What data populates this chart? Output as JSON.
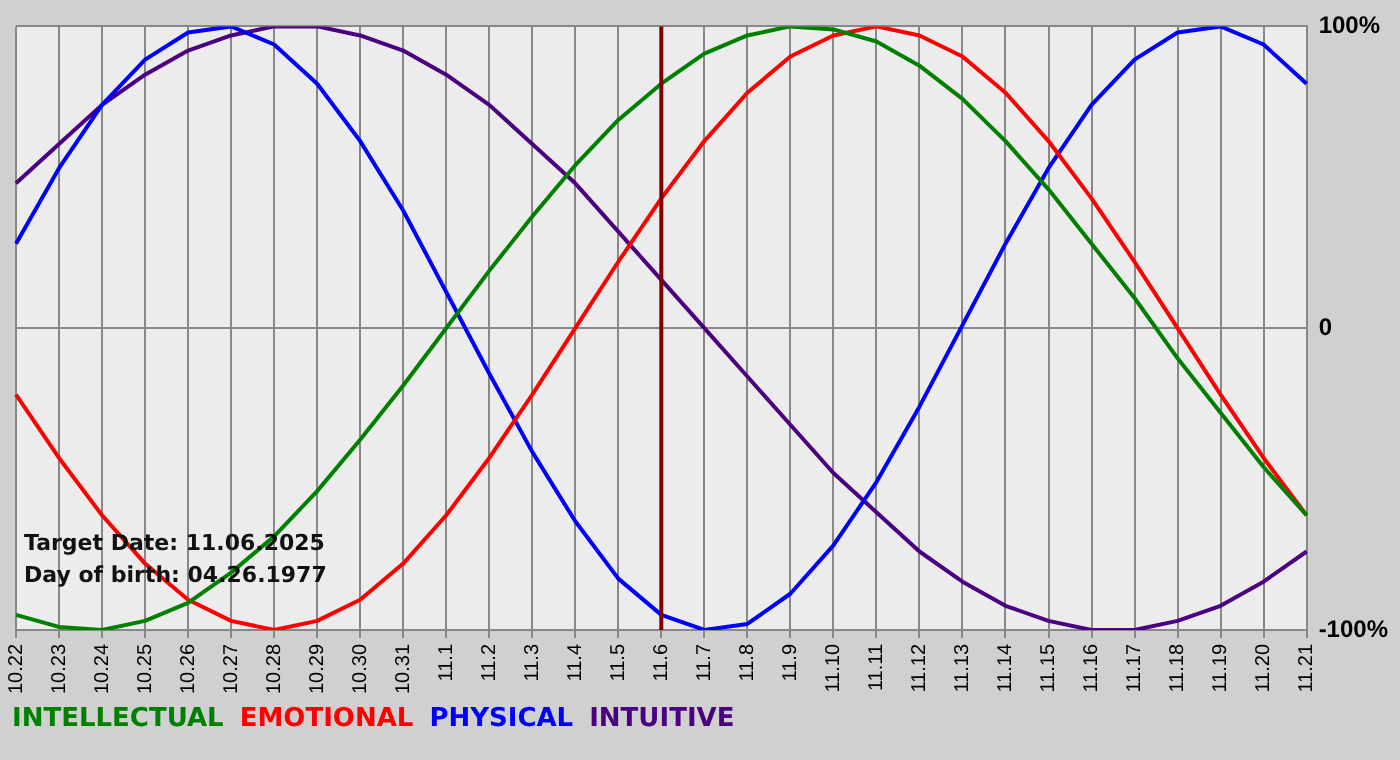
{
  "chart_data": {
    "type": "line",
    "categories": [
      "10.22",
      "10.23",
      "10.24",
      "10.25",
      "10.26",
      "10.27",
      "10.28",
      "10.29",
      "10.30",
      "10.31",
      "11.1",
      "11.2",
      "11.3",
      "11.4",
      "11.5",
      "11.6",
      "11.7",
      "11.8",
      "11.9",
      "11.10",
      "11.11",
      "11.12",
      "11.13",
      "11.14",
      "11.15",
      "11.16",
      "11.17",
      "11.18",
      "11.19",
      "11.20",
      "11.21"
    ],
    "series": [
      {
        "name": "INTELLECTUAL",
        "color": "#008000",
        "values": [
          -95,
          -99,
          -100,
          -97,
          -91,
          -81,
          -69,
          -54,
          -37,
          -19,
          0,
          19,
          37,
          54,
          69,
          81,
          91,
          97,
          100,
          99,
          95,
          87,
          76,
          62,
          46,
          28,
          10,
          -10,
          -28,
          -46,
          -62
        ]
      },
      {
        "name": "EMOTIONAL",
        "color": "#ff0000",
        "values": [
          -22,
          -43,
          -62,
          -78,
          -90,
          -97,
          -100,
          -97,
          -90,
          -78,
          -62,
          -43,
          -22,
          0,
          22,
          43,
          62,
          78,
          90,
          97,
          100,
          97,
          90,
          78,
          62,
          43,
          22,
          0,
          -22,
          -43,
          -62
        ]
      },
      {
        "name": "PHYSICAL",
        "color": "#0000ff",
        "values": [
          28,
          53,
          74,
          89,
          98,
          100,
          94,
          81,
          62,
          39,
          12,
          -15,
          -41,
          -64,
          -83,
          -95,
          -100,
          -98,
          -88,
          -72,
          -51,
          -26,
          1,
          28,
          53,
          74,
          89,
          98,
          100,
          94,
          81
        ]
      },
      {
        "name": "INTUITIVE",
        "color": "#4b0082",
        "values": [
          48,
          61,
          74,
          84,
          92,
          97,
          100,
          100,
          97,
          92,
          84,
          74,
          61,
          48,
          32,
          16,
          0,
          -16,
          -32,
          -48,
          -61,
          -74,
          -84,
          -92,
          -97,
          -100,
          -100,
          -97,
          -92,
          -84,
          -74
        ]
      }
    ],
    "ylim": [
      -100,
      100
    ],
    "yticks": [
      {
        "value": 100,
        "label": "100%"
      },
      0,
      {
        "value": -100,
        "label": "-100%"
      }
    ],
    "grid": true,
    "legend": "bottom left",
    "marker": "none",
    "line_style": "solid",
    "ref_lines": [
      {
        "axis": "x",
        "value": "11.6",
        "color": "#800000"
      }
    ],
    "annotations": [
      "Target Date: 11.06.2025",
      "Day of birth: 04.26.1977"
    ]
  }
}
